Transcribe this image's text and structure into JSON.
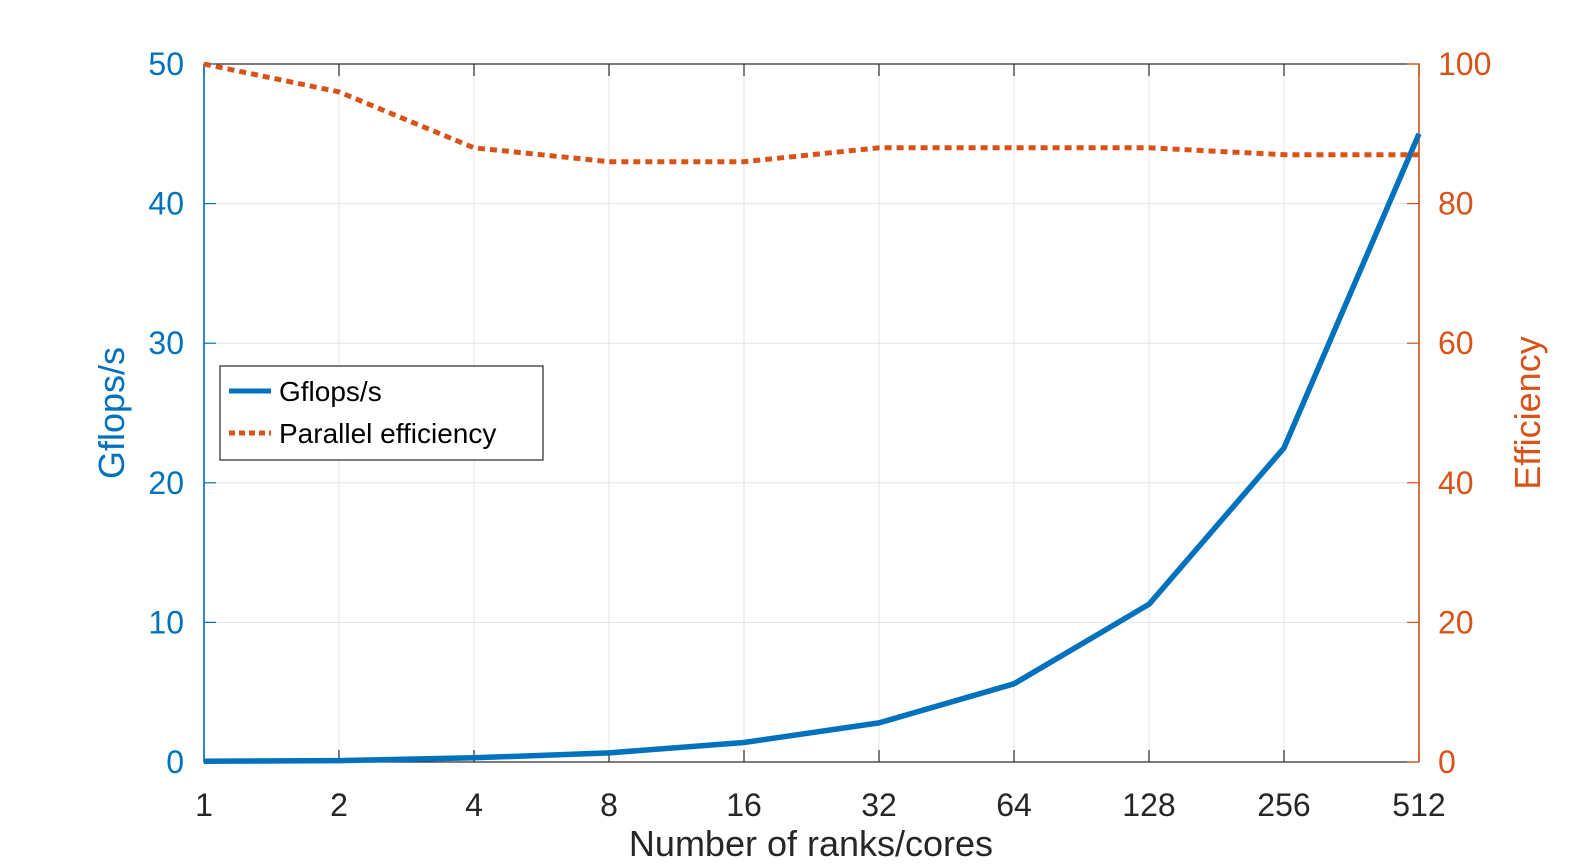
{
  "chart_data": {
    "type": "line",
    "x": [
      1,
      2,
      4,
      8,
      16,
      32,
      64,
      128,
      256,
      512
    ],
    "xscale": "log2",
    "xlabel": "Number of ranks/cores",
    "xtick_labels": [
      "1",
      "2",
      "4",
      "8",
      "16",
      "32",
      "64",
      "128",
      "256",
      "512"
    ],
    "ylabel_left": "Gflops/s",
    "ylim_left": [
      0,
      50
    ],
    "yticks_left": [
      0,
      10,
      20,
      30,
      40,
      50
    ],
    "ylabel_right": "Efficiency",
    "ylim_right": [
      0,
      100
    ],
    "yticks_right": [
      0,
      20,
      40,
      60,
      80,
      100
    ],
    "grid": true,
    "legend_position": "center-left",
    "series": [
      {
        "name": "Gflops/s",
        "axis": "left",
        "style": "solid",
        "color": "#0072BD",
        "values": [
          0.05,
          0.1,
          0.3,
          0.65,
          1.4,
          2.8,
          5.6,
          11.3,
          22.5,
          45.0
        ]
      },
      {
        "name": "Parallel efficiency",
        "axis": "right",
        "style": "dotted",
        "color": "#D95319",
        "values": [
          100,
          96,
          88,
          86,
          86,
          88,
          88,
          88,
          87,
          87
        ]
      }
    ]
  }
}
